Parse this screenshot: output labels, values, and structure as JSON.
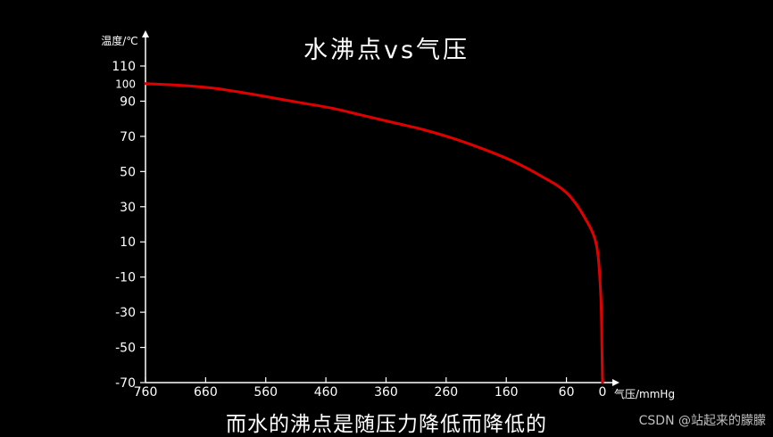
{
  "chart_data": {
    "type": "line",
    "title": "水沸点vs气压",
    "subtitle": "而水的沸点是随压力降低而降低的",
    "xlabel": "气压/mmHg",
    "ylabel": "温度/℃",
    "x_ticks": [
      760,
      660,
      560,
      460,
      360,
      260,
      160,
      60,
      0
    ],
    "y_ticks": [
      110,
      100,
      90,
      70,
      50,
      30,
      10,
      -10,
      -30,
      -50,
      -70
    ],
    "xlim": [
      760,
      0
    ],
    "ylim": [
      -70,
      115
    ],
    "series": [
      {
        "color": "#e00000",
        "x": [
          760,
          700,
          650,
          600,
          550,
          500,
          450,
          400,
          350,
          300,
          250,
          200,
          150,
          100,
          60,
          30,
          10,
          3,
          1,
          0
        ],
        "y": [
          100,
          99,
          97.5,
          95,
          92,
          89,
          86,
          82,
          78,
          74,
          69,
          63,
          56,
          47,
          38,
          24,
          8,
          -20,
          -50,
          -70
        ]
      }
    ],
    "grid": false,
    "axis_color": "#ffffff"
  },
  "watermark": "CSDN @站起来的朦朦"
}
